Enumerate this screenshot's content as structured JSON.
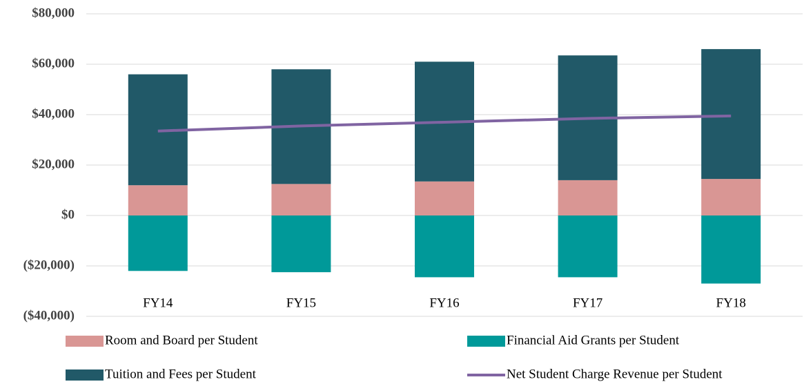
{
  "chart_data": {
    "type": "bar",
    "stacked": true,
    "categories": [
      "FY14",
      "FY15",
      "FY16",
      "FY17",
      "FY18"
    ],
    "series": [
      {
        "name": "Room and Board per Student",
        "color": "#d99694",
        "values": [
          12000,
          12500,
          13500,
          14000,
          14500
        ]
      },
      {
        "name": "Financial Aid Grants per Student",
        "color": "#009999",
        "values": [
          -22000,
          -22500,
          -24500,
          -24500,
          -27000
        ]
      },
      {
        "name": "Tuition and Fees per Student",
        "color": "#215968",
        "values": [
          44000,
          45500,
          47500,
          49500,
          51500
        ]
      },
      {
        "name": "Net Student Charge Revenue per Student",
        "color": "#8064a2",
        "type": "line",
        "values": [
          33500,
          35500,
          37000,
          38500,
          39500
        ]
      }
    ],
    "ylim": [
      -40000,
      80000
    ],
    "yticks": [
      {
        "value": -40000,
        "label": "($40,000)"
      },
      {
        "value": -20000,
        "label": "($20,000)"
      },
      {
        "value": 0,
        "label": "$0"
      },
      {
        "value": 20000,
        "label": "$20,000"
      },
      {
        "value": 40000,
        "label": "$40,000"
      },
      {
        "value": 60000,
        "label": "$60,000"
      },
      {
        "value": 80000,
        "label": "$80,000"
      }
    ],
    "grid": true,
    "legend": "bottom"
  }
}
